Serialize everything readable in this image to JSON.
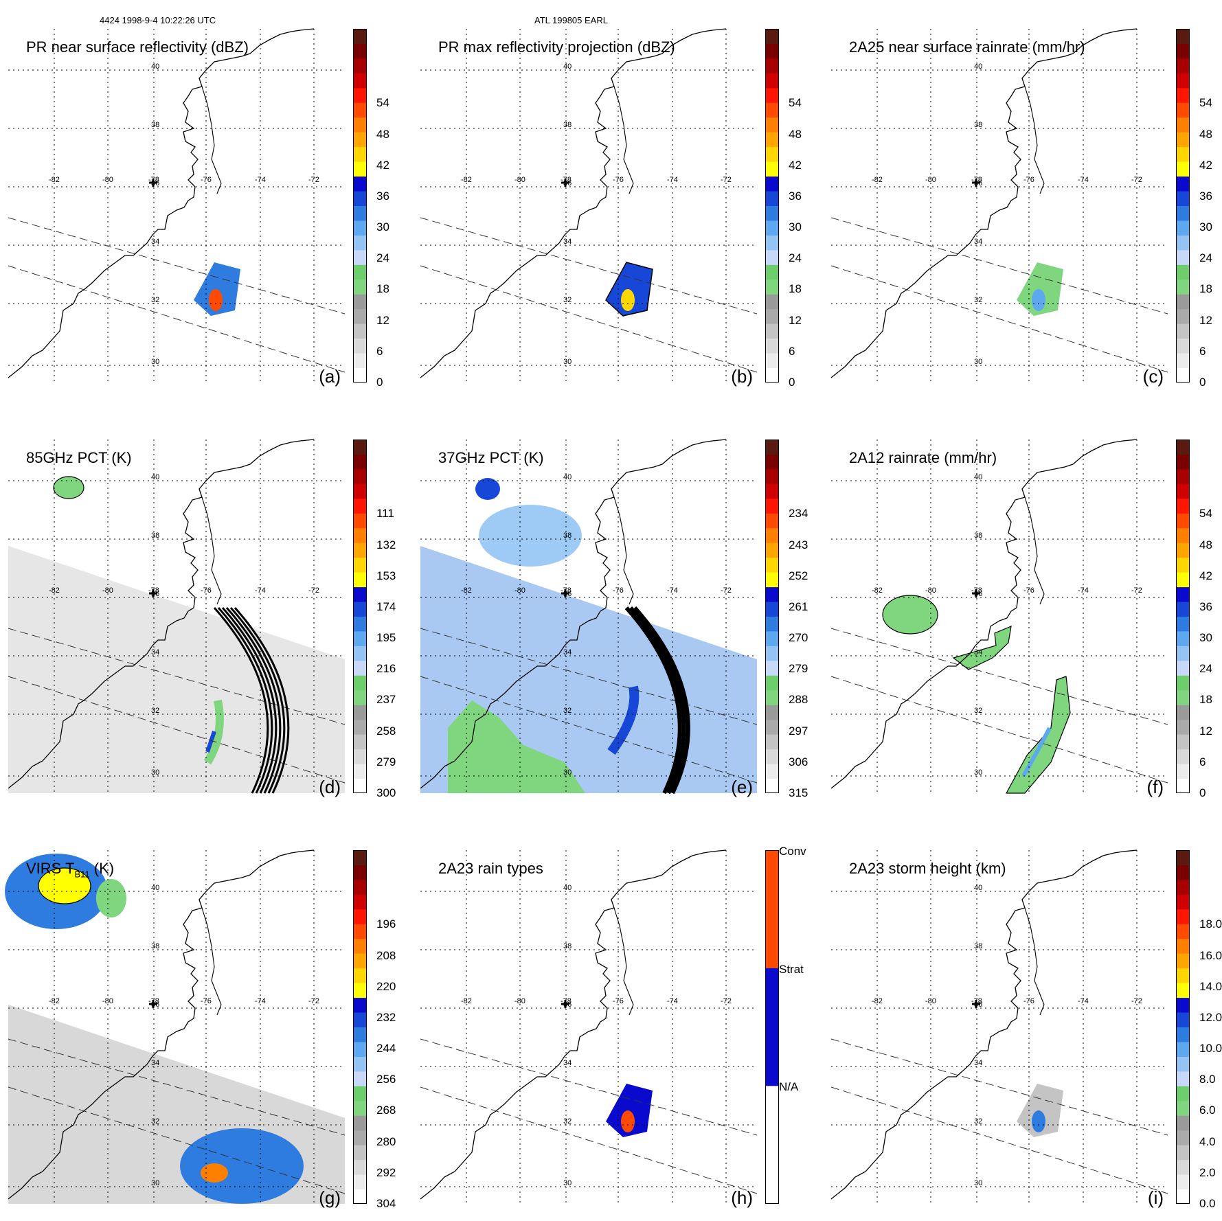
{
  "header": {
    "orbit_info": "4424 1998-9-4 10:22:26 UTC",
    "storm_info": "ATL 199805 EARL"
  },
  "lon_labels": [
    "-82",
    "-80",
    "-78",
    "-76",
    "-74",
    "-72"
  ],
  "lat_labels": [
    "40",
    "38",
    "36",
    "34",
    "32",
    "30"
  ],
  "colors": {
    "scale": [
      "#ffffff",
      "#ececec",
      "#d9d9d9",
      "#c4c4c4",
      "#aaaaaa",
      "#9a9a9a",
      "#7fd67f",
      "#6ccf6c",
      "#c8d8f8",
      "#94c4f4",
      "#5ea8ef",
      "#2f7ce0",
      "#1747d6",
      "#0a0acf",
      "#ffff00",
      "#ffd700",
      "#ffa500",
      "#ff8000",
      "#ff4a00",
      "#ff1500",
      "#d00000",
      "#a80000",
      "#7a0000",
      "#5a1a10"
    ],
    "rain_types": [
      "#ffffff",
      "#0a0acf",
      "#ff4a00"
    ]
  },
  "chart_data": [
    {
      "id": "a",
      "type": "heatmap",
      "title": "PR near surface reflectivity (dBZ)",
      "label": "(a)",
      "colorbar_ticks": [
        "0",
        "6",
        "12",
        "18",
        "24",
        "30",
        "36",
        "42",
        "48",
        "54"
      ]
    },
    {
      "id": "b",
      "type": "heatmap",
      "title": "PR max reflectivity projection (dBZ)",
      "label": "(b)",
      "colorbar_ticks": [
        "0",
        "6",
        "12",
        "18",
        "24",
        "30",
        "36",
        "42",
        "48",
        "54"
      ]
    },
    {
      "id": "c",
      "type": "heatmap",
      "title": "2A25 near surface rainrate (mm/hr)",
      "label": "(c)",
      "colorbar_ticks": [
        "0",
        "6",
        "12",
        "18",
        "24",
        "30",
        "36",
        "42",
        "48",
        "54"
      ]
    },
    {
      "id": "d",
      "type": "heatmap",
      "title": "85GHz PCT (K)",
      "label": "(d)",
      "colorbar_ticks": [
        "300",
        "279",
        "258",
        "237",
        "216",
        "195",
        "174",
        "153",
        "132",
        "111"
      ]
    },
    {
      "id": "e",
      "type": "heatmap",
      "title": "37GHz PCT (K)",
      "label": "(e)",
      "colorbar_ticks": [
        "315",
        "306",
        "297",
        "288",
        "279",
        "270",
        "261",
        "252",
        "243",
        "234"
      ]
    },
    {
      "id": "f",
      "type": "heatmap",
      "title": "2A12 rainrate (mm/hr)",
      "label": "(f)",
      "colorbar_ticks": [
        "0",
        "6",
        "12",
        "18",
        "24",
        "30",
        "36",
        "42",
        "48",
        "54"
      ]
    },
    {
      "id": "g",
      "type": "heatmap",
      "title_main": "VIRS T",
      "title_sub": "B11",
      "title_unit": " (K)",
      "label": "(g)",
      "colorbar_ticks": [
        "304",
        "292",
        "280",
        "268",
        "256",
        "244",
        "232",
        "220",
        "208",
        "196"
      ]
    },
    {
      "id": "h",
      "type": "heatmap",
      "title": "2A23 rain types",
      "label": "(h)",
      "colorbar_ticks": [
        "N/A",
        "Strat",
        "Conv"
      ]
    },
    {
      "id": "i",
      "type": "heatmap",
      "title": "2A23 storm height (km)",
      "label": "(i)",
      "colorbar_ticks": [
        "0.0",
        "2.0",
        "4.0",
        "6.0",
        "8.0",
        "10.0",
        "12.0",
        "14.0",
        "16.0",
        "18.0"
      ]
    }
  ]
}
